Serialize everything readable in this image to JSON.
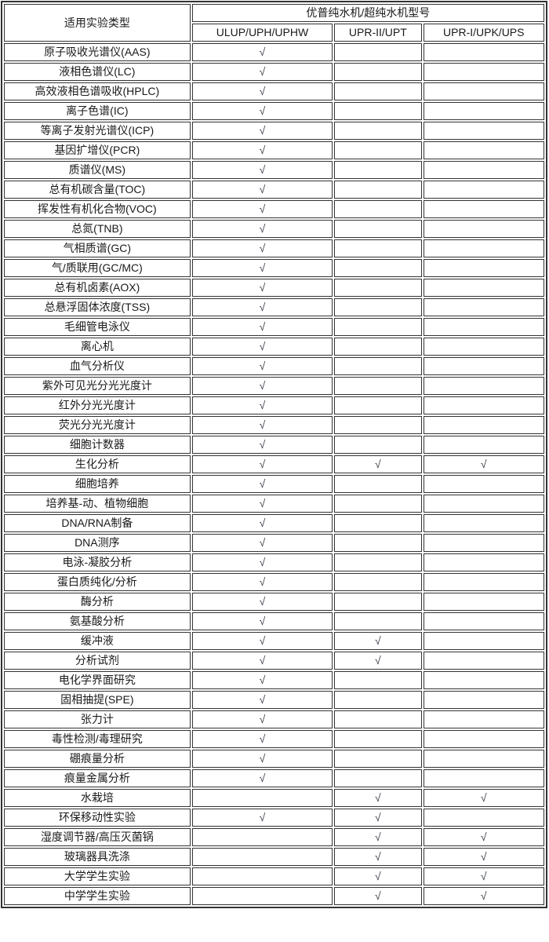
{
  "table": {
    "experiment_type_header": "适用实验类型",
    "group_header": "优普纯水机/超纯水机型号",
    "model_columns": [
      "ULUP/UPH/UPHW",
      "UPR-II/UPT",
      "UPR-I/UPK/UPS"
    ],
    "check_mark": "√",
    "rows": [
      {
        "label": "原子吸收光谱仪(AAS)",
        "checks": [
          true,
          false,
          false
        ]
      },
      {
        "label": "液相色谱仪(LC)",
        "checks": [
          true,
          false,
          false
        ]
      },
      {
        "label": "高效液相色谱吸收(HPLC)",
        "checks": [
          true,
          false,
          false
        ]
      },
      {
        "label": "离子色谱(IC)",
        "checks": [
          true,
          false,
          false
        ]
      },
      {
        "label": "等离子发射光谱仪(ICP)",
        "checks": [
          true,
          false,
          false
        ]
      },
      {
        "label": "基因扩增仪(PCR)",
        "checks": [
          true,
          false,
          false
        ]
      },
      {
        "label": "质谱仪(MS)",
        "checks": [
          true,
          false,
          false
        ]
      },
      {
        "label": "总有机碳含量(TOC)",
        "checks": [
          true,
          false,
          false
        ]
      },
      {
        "label": "挥发性有机化合物(VOC)",
        "checks": [
          true,
          false,
          false
        ]
      },
      {
        "label": "总氮(TNB)",
        "checks": [
          true,
          false,
          false
        ]
      },
      {
        "label": "气相质谱(GC)",
        "checks": [
          true,
          false,
          false
        ]
      },
      {
        "label": "气/质联用(GC/MC)",
        "checks": [
          true,
          false,
          false
        ]
      },
      {
        "label": "总有机卤素(AOX)",
        "checks": [
          true,
          false,
          false
        ]
      },
      {
        "label": "总悬浮固体浓度(TSS)",
        "checks": [
          true,
          false,
          false
        ]
      },
      {
        "label": "毛细管电泳仪",
        "checks": [
          true,
          false,
          false
        ]
      },
      {
        "label": "离心机",
        "checks": [
          true,
          false,
          false
        ]
      },
      {
        "label": "血气分析仪",
        "checks": [
          true,
          false,
          false
        ]
      },
      {
        "label": "紫外可见光分光光度计",
        "checks": [
          true,
          false,
          false
        ]
      },
      {
        "label": "红外分光光度计",
        "checks": [
          true,
          false,
          false
        ]
      },
      {
        "label": "荧光分光光度计",
        "checks": [
          true,
          false,
          false
        ]
      },
      {
        "label": "细胞计数器",
        "checks": [
          true,
          false,
          false
        ]
      },
      {
        "label": "生化分析",
        "checks": [
          true,
          true,
          true
        ]
      },
      {
        "label": "细胞培养",
        "checks": [
          true,
          false,
          false
        ]
      },
      {
        "label": "培养基-动、植物细胞",
        "checks": [
          true,
          false,
          false
        ]
      },
      {
        "label": "DNA/RNA制备",
        "checks": [
          true,
          false,
          false
        ]
      },
      {
        "label": "DNA测序",
        "checks": [
          true,
          false,
          false
        ]
      },
      {
        "label": "电泳-凝胶分析",
        "checks": [
          true,
          false,
          false
        ]
      },
      {
        "label": "蛋白质纯化/分析",
        "checks": [
          true,
          false,
          false
        ]
      },
      {
        "label": "酶分析",
        "checks": [
          true,
          false,
          false
        ]
      },
      {
        "label": "氨基酸分析",
        "checks": [
          true,
          false,
          false
        ]
      },
      {
        "label": "缓冲液",
        "checks": [
          true,
          true,
          false
        ]
      },
      {
        "label": "分析试剂",
        "checks": [
          true,
          true,
          false
        ]
      },
      {
        "label": "电化学界面研究",
        "checks": [
          true,
          false,
          false
        ]
      },
      {
        "label": "固相抽提(SPE)",
        "checks": [
          true,
          false,
          false
        ]
      },
      {
        "label": "张力计",
        "checks": [
          true,
          false,
          false
        ]
      },
      {
        "label": "毒性检测/毒理研究",
        "checks": [
          true,
          false,
          false
        ]
      },
      {
        "label": "硼痕量分析",
        "checks": [
          true,
          false,
          false
        ]
      },
      {
        "label": "痕量金属分析",
        "checks": [
          true,
          false,
          false
        ]
      },
      {
        "label": "水栽培",
        "checks": [
          false,
          true,
          true
        ]
      },
      {
        "label": "环保移动性实验",
        "checks": [
          true,
          true,
          false
        ]
      },
      {
        "label": "湿度调节器/高压灭菌锅",
        "checks": [
          false,
          true,
          true
        ]
      },
      {
        "label": "玻璃器具洗涤",
        "checks": [
          false,
          true,
          true
        ]
      },
      {
        "label": "大学学生实验",
        "checks": [
          false,
          true,
          true
        ]
      },
      {
        "label": "中学学生实验",
        "checks": [
          false,
          true,
          true
        ]
      }
    ],
    "colors": {
      "border": "#333333",
      "text": "#1a1a1a",
      "check": "#3a3f49"
    }
  }
}
